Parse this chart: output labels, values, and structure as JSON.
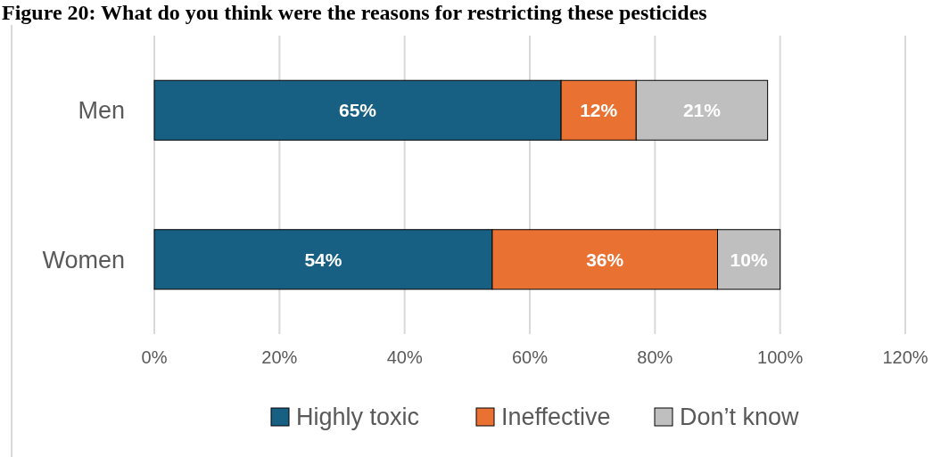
{
  "chart_data": {
    "type": "bar",
    "orientation": "horizontal",
    "stacked": true,
    "title": "Figure 20: What do you think were the reasons for restricting these pesticides",
    "categories": [
      "Men",
      "Women"
    ],
    "series": [
      {
        "name": "Highly toxic",
        "color": "#176083",
        "values": [
          65,
          54
        ],
        "value_labels": [
          "65%",
          "54%"
        ]
      },
      {
        "name": "Ineffective",
        "color": "#e97132",
        "values": [
          12,
          36
        ],
        "value_labels": [
          "12%",
          "36%"
        ]
      },
      {
        "name": "Don’t know",
        "color": "#bfbfbf",
        "values": [
          21,
          10
        ],
        "value_labels": [
          "21%",
          "10%"
        ]
      }
    ],
    "xlim": [
      0,
      120
    ],
    "xticks": [
      {
        "value": 0,
        "label": "0%"
      },
      {
        "value": 20,
        "label": "20%"
      },
      {
        "value": 40,
        "label": "40%"
      },
      {
        "value": 60,
        "label": "60%"
      },
      {
        "value": 80,
        "label": "80%"
      },
      {
        "value": 100,
        "label": "100%"
      },
      {
        "value": 120,
        "label": "120%"
      }
    ],
    "grid": "x",
    "legend": "bottom"
  }
}
